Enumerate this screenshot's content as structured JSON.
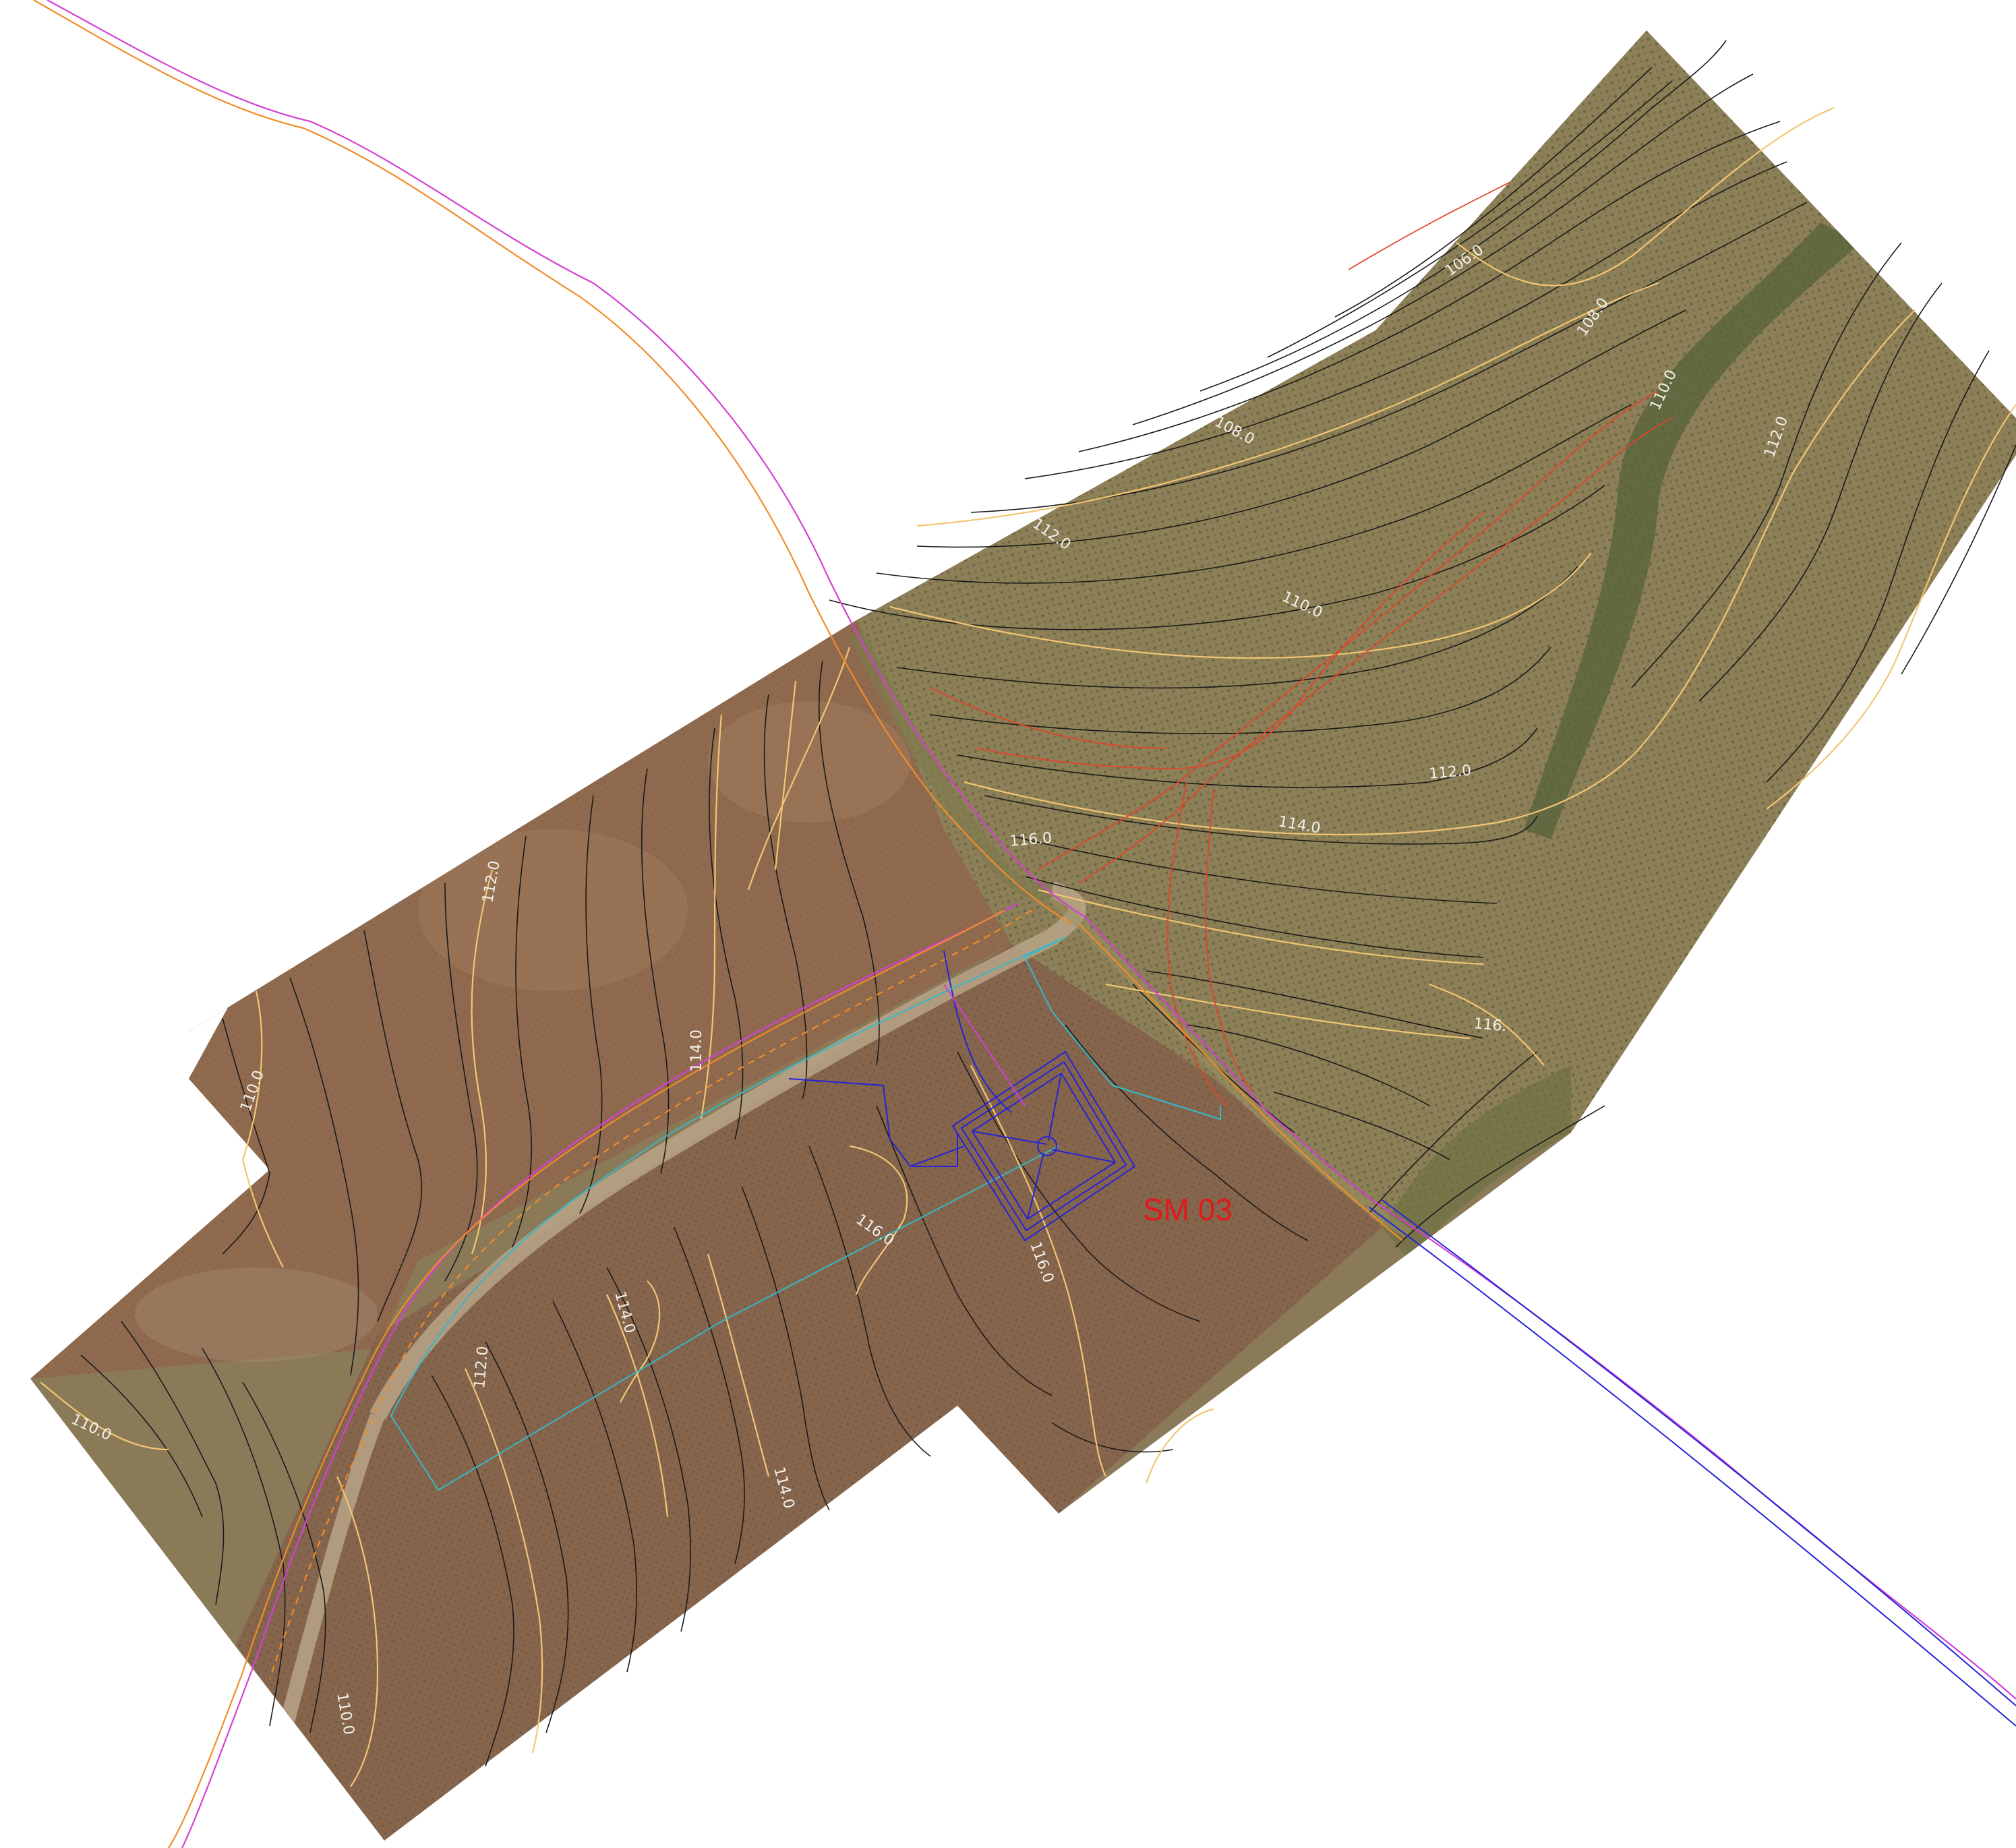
{
  "map": {
    "site_label": "SM 03",
    "contour_labels": {
      "c106_ne": "106.0",
      "c108_ne": "108.0",
      "c108_n": "108.0",
      "c110_ne": "110.0",
      "c112_ne": "112.0",
      "c112_mid": "112.0",
      "c110_mid": "110.0",
      "c112_field": "112.0",
      "c114_mid": "114.0",
      "c116_road": "116.0",
      "c116_e": "116.",
      "c112_w": "112.0",
      "c110_w": "110.0",
      "c114_w": "114.0",
      "c116_site_w": "116.0",
      "c114_pocket": "114.0",
      "c112_s": "112.0",
      "c116_site_s": "116.0",
      "c110_sw": "110.0",
      "c114_s": "114.0",
      "c110_s": "110.0"
    },
    "colors": {
      "background": "#ffffff",
      "field_brown": "#8d6a4c",
      "olive_grove": "#8a7c55",
      "contour_minor": "#1a1a1a",
      "contour_major": "#f2c674",
      "road_magenta": "#d43fd6",
      "road_orange": "#f08c2a",
      "survey_blue": "#2424d6",
      "boundary_cyan": "#35b8c8",
      "gas_red": "#e0452a",
      "site_red": "#e01a1a",
      "label_white": "#f3f1ea"
    }
  }
}
